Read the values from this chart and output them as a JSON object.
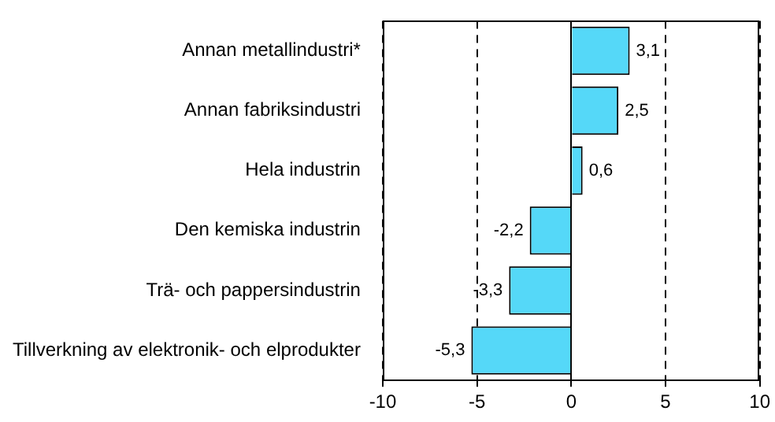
{
  "chart_data": {
    "type": "bar",
    "orientation": "horizontal",
    "categories": [
      "Annan metallindustri*",
      "Annan fabriksindustri",
      "Hela industrin",
      "Den kemiska industrin",
      "Trä- och pappersindustrin",
      "Tillverkning av elektronik- och elprodukter"
    ],
    "values": [
      3.1,
      2.5,
      0.6,
      -2.2,
      -3.3,
      -5.3
    ],
    "value_labels": [
      "3,1",
      "2,5",
      "0,6",
      "-2,2",
      "-3,3",
      "-5,3"
    ],
    "color": "#55d8f8",
    "xlim": [
      -10,
      10
    ],
    "xticks": [
      -10,
      -5,
      0,
      5,
      10
    ],
    "grid": "x",
    "legend": false
  }
}
